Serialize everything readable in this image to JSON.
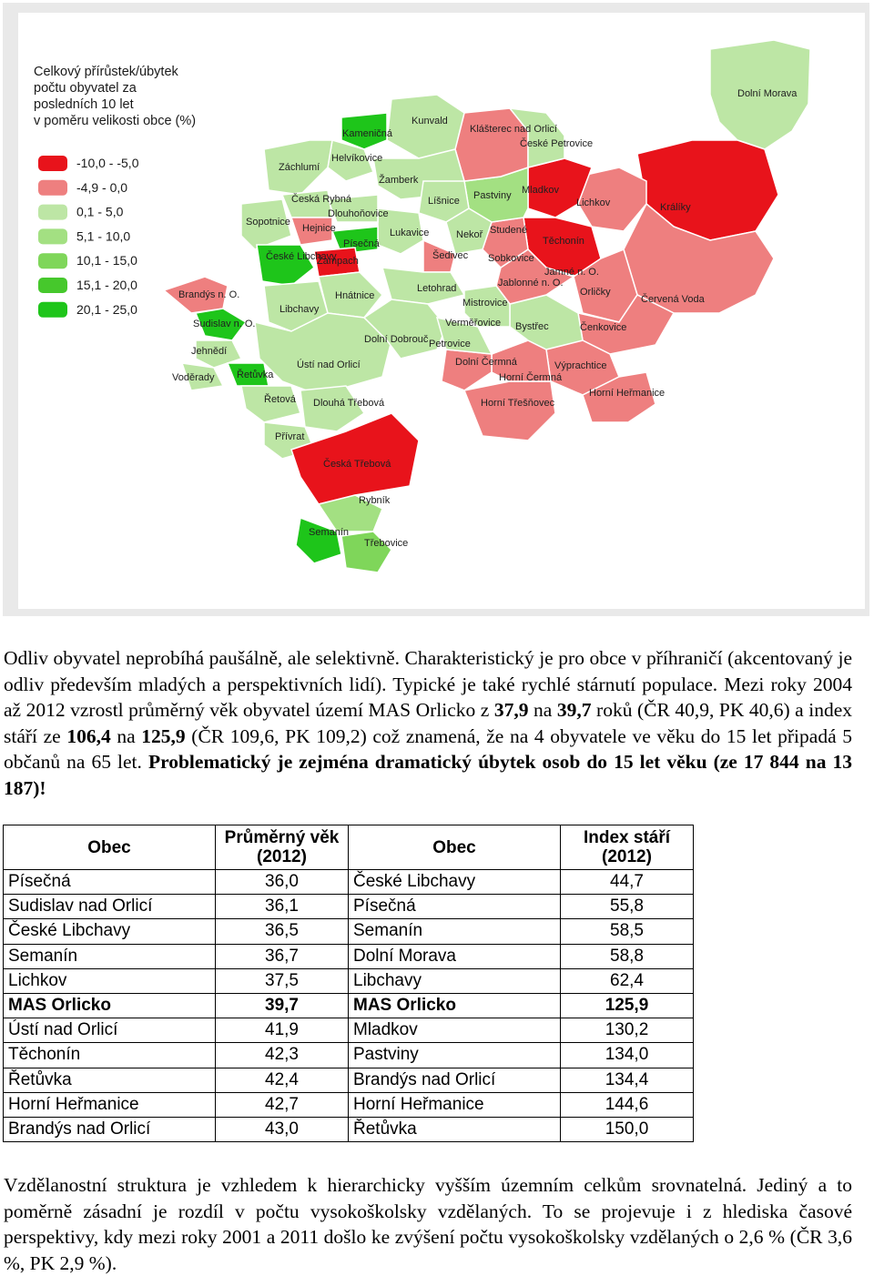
{
  "legend": {
    "title_lines": [
      "Celkový přírůstek/úbytek",
      "počtu obyvatel za",
      "posledních 10 let",
      "v poměru velikosti obce (%)"
    ],
    "items": [
      {
        "label": "-10,0 - -5,0",
        "color": "#e8131b"
      },
      {
        "label": "-4,9 - 0,0",
        "color": "#ee7f7f"
      },
      {
        "label": "0,1 - 5,0",
        "color": "#bde6a5"
      },
      {
        "label": "5,1 - 10,0",
        "color": "#a3e082"
      },
      {
        "label": "10,1 - 15,0",
        "color": "#7fd65a"
      },
      {
        "label": "15,1 - 20,0",
        "color": "#46c82c"
      },
      {
        "label": "20,1 - 25,0",
        "color": "#1ec51a"
      }
    ]
  },
  "towns": [
    "Kunvald",
    "Klášterec nad Orlicí",
    "České Petrovice",
    "Dolní Morava",
    "Kameničná",
    "Helvíkovice",
    "Záchlumí",
    "Žamberk",
    "Líšnice",
    "Pastviny",
    "Mladkov",
    "Lichkov",
    "Králíky",
    "Česká Rybná",
    "Dlouhoňovice",
    "Sopotnice",
    "Hejnice",
    "Písečná",
    "Lukavice",
    "Nekoř",
    "Studené",
    "Těchonín",
    "České Libchavy",
    "Žampach",
    "Šedivec",
    "Sobkovice",
    "Jamné n. O.",
    "Brandýs n. O.",
    "Hnátnice",
    "Letohrad",
    "Jablonné n. O.",
    "Orličky",
    "Červená Voda",
    "Libchavy",
    "Mistrovice",
    "Sudislav n. O.",
    "Verměřovice",
    "Bystřec",
    "Čenkovice",
    "Dolní Dobrouč",
    "Petrovice",
    "Jehnědí",
    "Ústí nad Orlicí",
    "Dolní Čermná",
    "Výprachtice",
    "Voděrady",
    "Řetůvka",
    "Horní Čermná",
    "Horní Heřmanice",
    "Řetová",
    "Dlouhá Třebová",
    "Horní Třešňovec",
    "Přívrat",
    "Česká Třebová",
    "Rybník",
    "Semanín",
    "Třebovice"
  ],
  "paragraph1": {
    "a": "Odliv obyvatel neprobíhá paušálně, ale selektivně. Charakteristický je pro obce v příhraničí (akcentovaný je odliv především mladých a perspektivních lidí). Typické je také rychlé stárnutí populace. Mezi roky 2004 až 2012 vzrostl průměrný věk obyvatel území MAS Orlicko z",
    "b": "37,9",
    "c": "na",
    "d": "39,7",
    "e": "roků (ČR 40,9, PK 40,6) a index stáří ze",
    "f": "106,4",
    "g": "na",
    "h": "125,9",
    "i": "(ČR 109,6, PK 109,2) což znamená, že na 4 obyvatele ve věku do 15 let připadá 5 občanů na 65 let.",
    "j": "Problematický je zejména dramatický úbytek osob do 15 let věku (ze 17 844 na 13 187)!"
  },
  "table": {
    "headers": [
      "Obec",
      "Průměrný věk (2012)",
      "Obec",
      "Index stáří (2012)"
    ],
    "rows": [
      [
        "Písečná",
        "36,0",
        "České Libchavy",
        "44,7"
      ],
      [
        "Sudislav nad Orlicí",
        "36,1",
        "Písečná",
        "55,8"
      ],
      [
        "České Libchavy",
        "36,5",
        "Semanín",
        "58,5"
      ],
      [
        "Semanín",
        "36,7",
        "Dolní Morava",
        "58,8"
      ],
      [
        "Lichkov",
        "37,5",
        "Libchavy",
        "62,4"
      ],
      [
        "MAS Orlicko",
        "39,7",
        "MAS Orlicko",
        "125,9"
      ],
      [
        "Ústí nad Orlicí",
        "41,9",
        "Mladkov",
        "130,2"
      ],
      [
        "Těchonín",
        "42,3",
        "Pastviny",
        "134,0"
      ],
      [
        "Řetůvka",
        "42,4",
        "Brandýs nad Orlicí",
        "134,4"
      ],
      [
        "Horní Heřmanice",
        "42,7",
        "Horní Heřmanice",
        "144,6"
      ],
      [
        "Brandýs nad Orlicí",
        "43,0",
        "Řetůvka",
        "150,0"
      ]
    ],
    "bold_row": 5
  },
  "paragraph2": "Vzdělanostní struktura je vzhledem k hierarchicky vyšším územním celkům srovnatelná. Jediný a to poměrně zásadní je rozdíl v počtu vysokoškolsky vzdělaných. To se projevuje i z hlediska časové perspektivy, kdy mezi roky 2001 a 2011 došlo ke zvýšení počtu vysokoškolsky vzdělaných o 2,6 % (ČR 3,6 %, PK 2,9 %)."
}
